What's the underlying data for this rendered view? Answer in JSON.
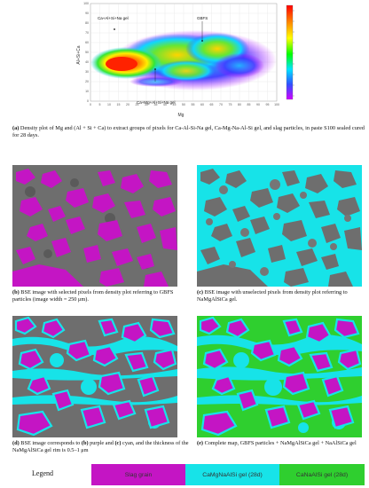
{
  "density_plot": {
    "xlabel": "Mg",
    "ylabel": "Al+Si+Ca",
    "x_ticks": [
      "0",
      "5",
      "10",
      "15",
      "20",
      "25",
      "30",
      "35",
      "40",
      "45",
      "50",
      "55",
      "60",
      "65",
      "70",
      "75",
      "80",
      "85",
      "90",
      "95",
      "100"
    ],
    "y_ticks": [
      "100",
      "90",
      "80",
      "70",
      "60",
      "50",
      "40",
      "30",
      "20",
      "10",
      "0"
    ],
    "annotations": {
      "ca_al_si_na": "Ca+Al+Si+Na gel",
      "gbfs": "GBFS",
      "ca_mg_al_si_na": "Ca+Mg+Al+Si+Na gel"
    },
    "colorscale": [
      "#ff0000",
      "#ff8800",
      "#ffff00",
      "#00ff00",
      "#00e5ff",
      "#3050ff",
      "#d000ff"
    ]
  },
  "captions": {
    "a": {
      "tag": "(a)",
      "text": " Density plot of Mg and (Al + Si + Ca) to extract groups of pixels for Ca-Al-Si-Na gel, Ca-Mg-Na-Al-Si gel, and slag particles, in paste S100 sealed cured for 28 days."
    },
    "b": {
      "tag": "(b)",
      "text": " BSE image with selected pixels from density plot referring to GBFS particles (image width = 250 μm)."
    },
    "c": {
      "tag": "(c)",
      "text": " BSE image with unselected pixels from density plot referring to NaMgAlSiCa gel."
    },
    "d_tag1": "(d)",
    "d_text1": " BSE image corresponds to ",
    "d_tag2": "(b)",
    "d_text2": " purple and ",
    "d_tag3": "(c)",
    "d_text3": " cyan, and the thickness of the NaMgAlSiCa gel rim is 0.5–1 μm",
    "e": {
      "tag": "(e)",
      "text": " Complete map, GBFS particles + NaMgAlSiCa gel + NaAlSiCa gel"
    }
  },
  "legend": {
    "title": "Legend",
    "items": [
      {
        "label": "Slag grain",
        "color": "#c415c4"
      },
      {
        "label": "CaMgNaAlSi gel (28d)",
        "color": "#17e3e8"
      },
      {
        "label": "CaNaAlSi gel (28d)",
        "color": "#2fcf2f"
      }
    ]
  }
}
